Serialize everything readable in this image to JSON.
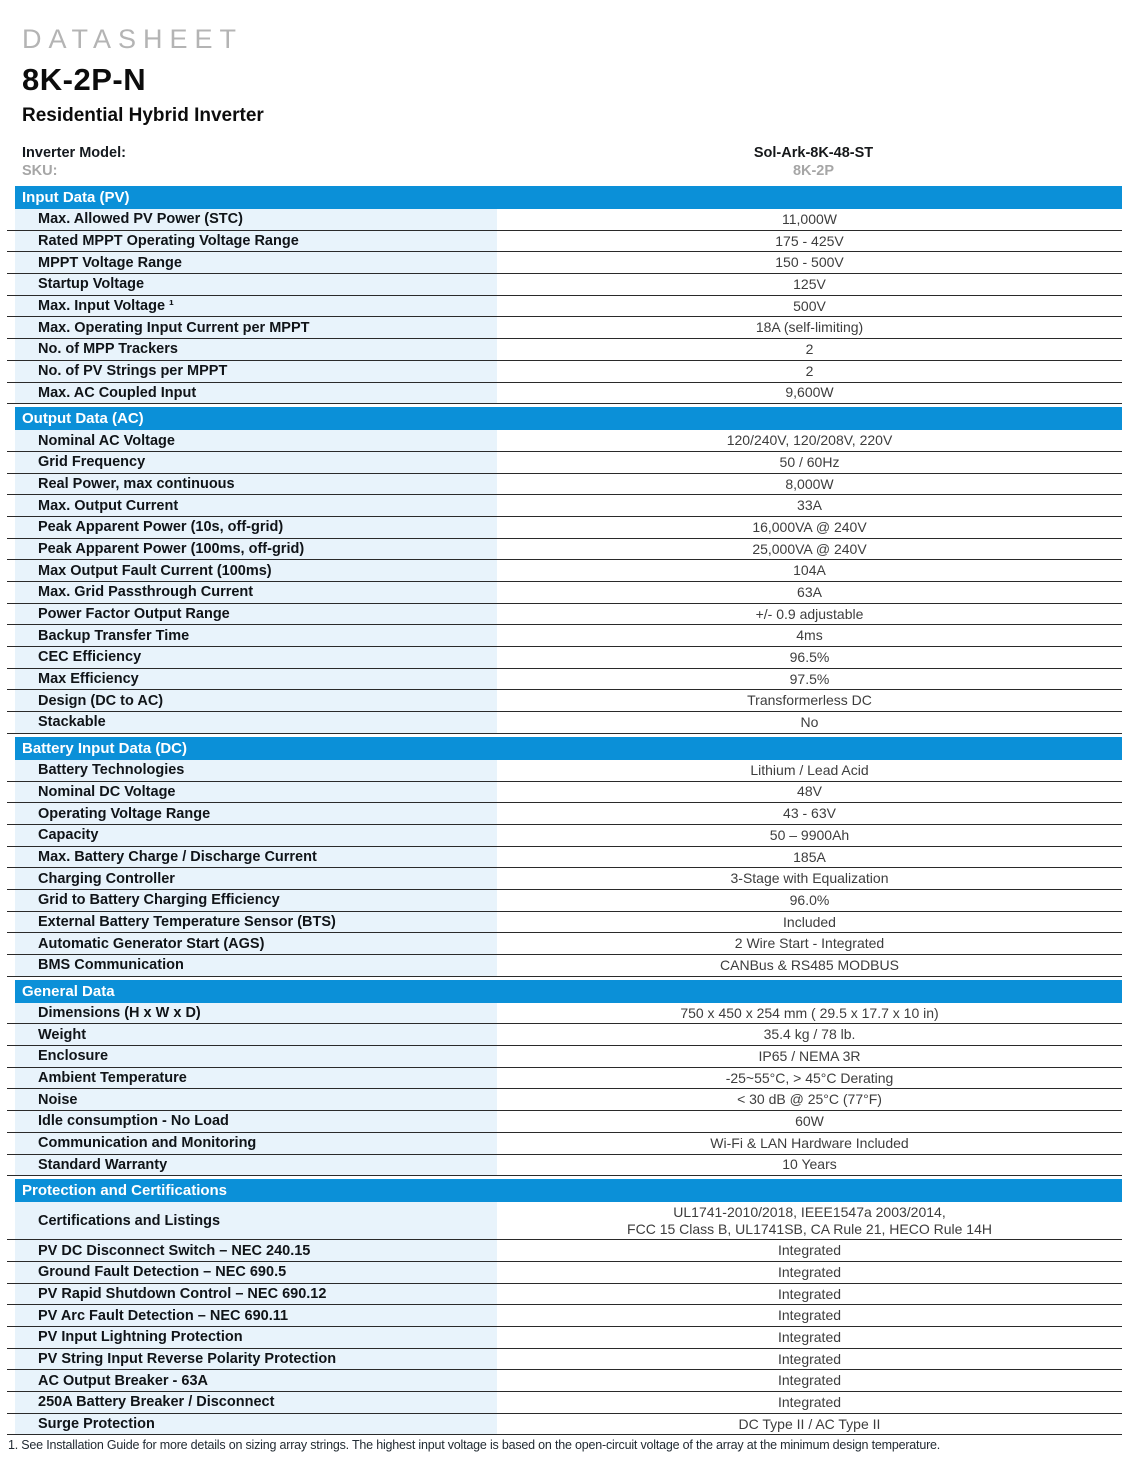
{
  "header": {
    "eyebrow": "DATASHEET",
    "model": "8K-2P-N",
    "subtitle": "Residential Hybrid Inverter"
  },
  "model_info": {
    "inverter_model_label": "Inverter Model:",
    "inverter_model_value": "Sol-Ark-8K-48-ST",
    "sku_label": "SKU:",
    "sku_value": "8K-2P"
  },
  "colors": {
    "section_bar_blue": "#0b90d8",
    "row_label_bg": "#e8f3fb",
    "muted_gray": "#a6a6a6"
  },
  "sections": [
    {
      "title": "Input Data (PV)",
      "rows": [
        {
          "label": "Max. Allowed PV Power (STC)",
          "value": "11,000W"
        },
        {
          "label": "Rated MPPT Operating Voltage Range",
          "value": "175 - 425V"
        },
        {
          "label": "MPPT Voltage Range",
          "value": "150 - 500V"
        },
        {
          "label": "Startup Voltage",
          "value": "125V"
        },
        {
          "label": "Max. Input Voltage ¹",
          "value": "500V"
        },
        {
          "label": "Max. Operating Input Current per MPPT",
          "value": "18A (self-limiting)"
        },
        {
          "label": "No. of MPP Trackers",
          "value": "2"
        },
        {
          "label": "No. of PV Strings per MPPT",
          "value": "2"
        },
        {
          "label": "Max. AC Coupled Input",
          "value": "9,600W"
        }
      ]
    },
    {
      "title": "Output Data (AC)",
      "rows": [
        {
          "label": "Nominal AC Voltage",
          "value": "120/240V, 120/208V, 220V"
        },
        {
          "label": "Grid Frequency",
          "value": "50 / 60Hz"
        },
        {
          "label": "Real Power, max continuous",
          "value": "8,000W"
        },
        {
          "label": "Max. Output Current",
          "value": "33A"
        },
        {
          "label": "Peak Apparent Power (10s, off-grid)",
          "value": "16,000VA @ 240V"
        },
        {
          "label": "Peak Apparent Power (100ms, off-grid)",
          "value": "25,000VA @ 240V"
        },
        {
          "label": "Max Output Fault Current (100ms)",
          "value": "104A"
        },
        {
          "label": "Max. Grid Passthrough Current",
          "value": "63A"
        },
        {
          "label": "Power Factor Output Range",
          "value": "+/- 0.9 adjustable"
        },
        {
          "label": "Backup Transfer Time",
          "value": "4ms"
        },
        {
          "label": "CEC Efficiency",
          "value": "96.5%"
        },
        {
          "label": "Max Efficiency",
          "value": "97.5%"
        },
        {
          "label": "Design (DC to AC)",
          "value": "Transformerless DC"
        },
        {
          "label": "Stackable",
          "value": "No"
        }
      ]
    },
    {
      "title": "Battery Input Data (DC)",
      "rows": [
        {
          "label": "Battery Technologies",
          "value": "Lithium / Lead Acid"
        },
        {
          "label": "Nominal DC Voltage",
          "value": "48V"
        },
        {
          "label": "Operating Voltage Range",
          "value": "43 - 63V"
        },
        {
          "label": "Capacity",
          "value": "50 – 9900Ah"
        },
        {
          "label": "Max. Battery Charge / Discharge Current",
          "value": "185A"
        },
        {
          "label": "Charging Controller",
          "value": "3-Stage with Equalization"
        },
        {
          "label": "Grid to Battery Charging Efficiency",
          "value": "96.0%"
        },
        {
          "label": "External Battery Temperature Sensor (BTS)",
          "value": "Included"
        },
        {
          "label": "Automatic Generator Start (AGS)",
          "value": "2 Wire Start - Integrated"
        },
        {
          "label": "BMS Communication",
          "value": "CANBus & RS485 MODBUS"
        }
      ]
    },
    {
      "title": "General Data",
      "rows": [
        {
          "label": "Dimensions (H x W x D)",
          "value": "750 x 450 x 254 mm ( 29.5 x 17.7 x 10 in)"
        },
        {
          "label": "Weight",
          "value": "35.4 kg / 78 lb."
        },
        {
          "label": "Enclosure",
          "value": "IP65 / NEMA 3R"
        },
        {
          "label": "Ambient Temperature",
          "value": "-25~55°C, > 45°C Derating"
        },
        {
          "label": "Noise",
          "value": "< 30 dB @ 25°C (77°F)"
        },
        {
          "label": "Idle consumption - No Load",
          "value": "60W"
        },
        {
          "label": "Communication and Monitoring",
          "value": "Wi-Fi & LAN Hardware Included"
        },
        {
          "label": "Standard Warranty",
          "value": "10 Years"
        }
      ]
    },
    {
      "title": "Protection and Certifications",
      "rows": [
        {
          "label": "Certifications and Listings",
          "value": "UL1741-2010/2018, IEEE1547a 2003/2014,\nFCC 15 Class B, UL1741SB, CA Rule 21, HECO Rule 14H"
        },
        {
          "label": "PV DC Disconnect Switch – NEC 240.15",
          "value": "Integrated"
        },
        {
          "label": "Ground Fault Detection – NEC 690.5",
          "value": "Integrated"
        },
        {
          "label": "PV Rapid Shutdown Control – NEC 690.12",
          "value": "Integrated"
        },
        {
          "label": "PV Arc Fault Detection – NEC 690.11",
          "value": "Integrated"
        },
        {
          "label": "PV Input Lightning Protection",
          "value": "Integrated"
        },
        {
          "label": "PV String Input Reverse Polarity Protection",
          "value": "Integrated"
        },
        {
          "label": "AC Output Breaker - 63A",
          "value": "Integrated"
        },
        {
          "label": "250A Battery Breaker / Disconnect",
          "value": "Integrated"
        },
        {
          "label": "Surge Protection",
          "value": "DC Type II / AC Type II"
        }
      ]
    }
  ],
  "footnote": "1.  See Installation Guide for more details on sizing array strings. The highest input voltage is based on the open-circuit voltage of the array at the minimum design temperature."
}
